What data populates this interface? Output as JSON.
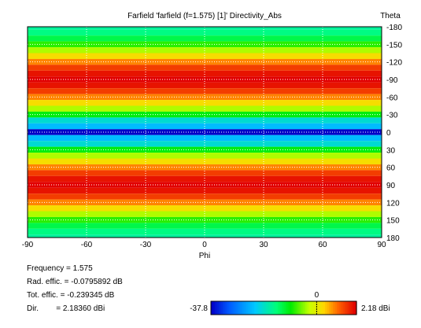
{
  "chart_data": {
    "type": "heatmap",
    "title": "Farfield 'farfield (f=1.575) [1]' Directivity_Abs",
    "xlabel": "Phi",
    "ylabel": "Theta",
    "xlim": [
      -90,
      90
    ],
    "ylim": [
      -180,
      180
    ],
    "x_ticks": [
      "-90",
      "-60",
      "-30",
      "0",
      "30",
      "60",
      "90"
    ],
    "y_ticks": [
      "-180",
      "-150",
      "-120",
      "-90",
      "-60",
      "-30",
      "0",
      "30",
      "60",
      "90",
      "120",
      "150",
      "180"
    ],
    "grid": true,
    "theta": [
      -180,
      -170,
      -160,
      -150,
      -140,
      -130,
      -120,
      -110,
      -100,
      -90,
      -80,
      -70,
      -60,
      -50,
      -40,
      -30,
      -20,
      -10,
      0,
      10,
      20,
      30,
      40,
      50,
      60,
      70,
      80,
      90,
      100,
      110,
      120,
      130,
      140,
      150,
      160,
      170,
      180
    ],
    "directivity_dbi": [
      -2.5,
      -2.3,
      -1.9,
      -1.2,
      -0.5,
      0.3,
      1.0,
      1.6,
      2.0,
      2.18,
      2.0,
      1.6,
      1.0,
      0.3,
      -0.5,
      -1.5,
      -3.0,
      -6.5,
      -37.8,
      -6.5,
      -3.0,
      -1.5,
      -0.5,
      0.3,
      1.0,
      1.6,
      2.0,
      2.18,
      2.0,
      1.6,
      1.0,
      0.3,
      -0.5,
      -1.2,
      -1.9,
      -2.3,
      -2.5
    ],
    "colorbar": {
      "min_label": "-37.8",
      "max_label": "2.18 dBi",
      "zero_label": "0",
      "min": -37.8,
      "max": 2.18
    }
  },
  "info": {
    "frequency": "Frequency = 1.575",
    "rad_effic": "Rad. effic. = -0.0795892 dB",
    "tot_effic": "Tot. effic. = -0.239345 dB",
    "dir": "Dir.        = 2.18360 dBi"
  }
}
